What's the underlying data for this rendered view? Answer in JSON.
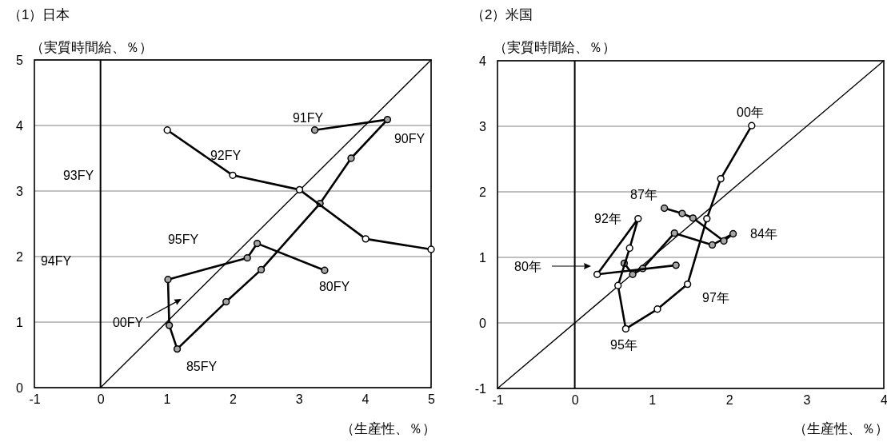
{
  "chart_data": [
    {
      "type": "line",
      "title": "（1）日本",
      "ylabel": "（実質時間給、％）",
      "xlabel": "（生産性、％）",
      "xlim": [
        -1,
        5
      ],
      "xticks": [
        -1,
        0,
        1,
        2,
        3,
        4,
        5
      ],
      "ylim": [
        0,
        5
      ],
      "yticks": [
        0,
        1,
        2,
        3,
        4,
        5
      ],
      "grid": "y",
      "ref_lines": [
        {
          "axis": "x",
          "value": 0,
          "color": "#000000"
        }
      ],
      "series": [
        {
          "type": "line",
          "color": "#000000",
          "marker": "none",
          "x": [
            0,
            5
          ],
          "values": [
            0,
            5
          ]
        },
        {
          "type": "line",
          "color": "#000000",
          "marker": "circle",
          "colors": [
            "#a6a6a6",
            "#a6a6a6",
            "#a6a6a6",
            "#a6a6a6",
            "#a6a6a6",
            "#a6a6a6",
            "#a6a6a6",
            "#a6a6a6",
            "#a6a6a6",
            "#a6a6a6",
            "#a6a6a6",
            "#a6a6a6"
          ],
          "x": [
            3.39,
            2.37,
            2.22,
            1.02,
            1.04,
            1.16,
            1.9,
            2.43,
            3.32,
            3.79,
            4.34,
            3.24
          ],
          "values": [
            1.79,
            2.2,
            1.98,
            1.65,
            0.95,
            0.59,
            1.31,
            1.8,
            2.81,
            3.5,
            4.09,
            3.93
          ]
        },
        {
          "type": "line",
          "color": "#000000",
          "marker": "circle",
          "colors": [
            "#ffffff",
            "#ffffff",
            "#ffffff",
            "#ffffff",
            "#ffffff"
          ],
          "x": [
            1.01,
            2.0,
            3.01,
            4.01,
            5.0
          ],
          "values": [
            3.93,
            3.24,
            3.02,
            2.27,
            2.11
          ]
        }
      ],
      "annotations": [
        "91FY",
        "90FY",
        "92FY",
        "93FY",
        "95FY",
        "94FY",
        "80FY",
        "00FY",
        "85FY"
      ]
    },
    {
      "type": "line",
      "title": "（2）米国",
      "ylabel": "（実質時間給、％）",
      "xlabel": "（生産性、％）",
      "xlim": [
        -1,
        4
      ],
      "xticks": [
        -1,
        0,
        1,
        2,
        3,
        4
      ],
      "ylim": [
        -1,
        4
      ],
      "yticks": [
        -1,
        0,
        1,
        2,
        3,
        4
      ],
      "grid": "y",
      "ref_lines": [
        {
          "axis": "x",
          "value": 0,
          "color": "#000000"
        }
      ],
      "series": [
        {
          "type": "line",
          "color": "#000000",
          "marker": "none",
          "x": [
            -1,
            4
          ],
          "values": [
            -1,
            4
          ]
        },
        {
          "type": "line",
          "color": "#000000",
          "marker": "circle",
          "colors": [
            "#a6a6a6",
            "#a6a6a6",
            "#a6a6a6",
            "#a6a6a6",
            "#a6a6a6",
            "#a6a6a6",
            "#a6a6a6",
            "#a6a6a6",
            "#a6a6a6",
            "#a6a6a6"
          ],
          "x": [
            1.16,
            1.39,
            1.53,
            1.93,
            2.05,
            1.78,
            1.29,
            0.88,
            0.75,
            0.64
          ],
          "values": [
            1.75,
            1.67,
            1.6,
            1.25,
            1.36,
            1.19,
            1.37,
            0.83,
            0.74,
            0.91
          ]
        },
        {
          "type": "line",
          "color": "#000000",
          "marker": "circle",
          "colors": [
            "#a6a6a6",
            "#ffffff",
            "#ffffff",
            "#ffffff",
            "#ffffff",
            "#ffffff",
            "#ffffff",
            "#ffffff",
            "#ffffff",
            "#ffffff",
            "#ffffff"
          ],
          "x": [
            1.31,
            0.29,
            0.82,
            0.71,
            0.56,
            0.66,
            1.07,
            1.46,
            1.71,
            1.89,
            2.29
          ],
          "values": [
            0.88,
            0.74,
            1.59,
            1.14,
            0.57,
            -0.09,
            0.21,
            0.59,
            1.59,
            2.2,
            3.01
          ]
        }
      ],
      "annotations": [
        "00年",
        "87年",
        "92年",
        "84年",
        "80年",
        "97年",
        "95年"
      ]
    }
  ]
}
